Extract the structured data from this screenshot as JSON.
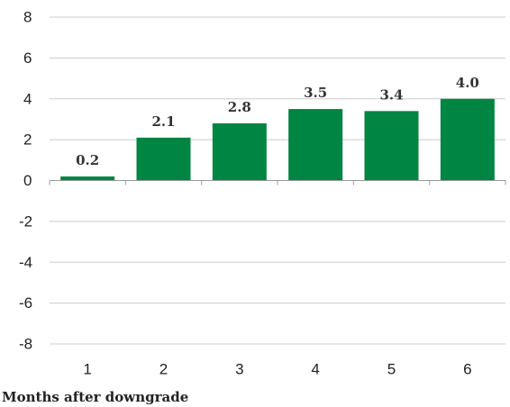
{
  "chart_data": {
    "type": "bar",
    "categories": [
      "1",
      "2",
      "3",
      "4",
      "5",
      "6"
    ],
    "values": [
      0.2,
      2.1,
      2.8,
      3.5,
      3.4,
      4.0
    ],
    "data_labels": [
      "0.2",
      "2.1",
      "2.8",
      "3.5",
      "3.4",
      "4.0"
    ],
    "y_ticks": [
      8,
      6,
      4,
      2,
      0,
      -2,
      -4,
      -6,
      -8
    ],
    "y_tick_labels": [
      "8",
      "6",
      "4",
      "2",
      "0",
      "-2",
      "-4",
      "-6",
      "-8"
    ],
    "ylim": [
      -8,
      8
    ],
    "xlabel": "Months after downgrade",
    "ylabel": "",
    "title": "",
    "grid": "horizontal",
    "bar_color": "#008542"
  }
}
